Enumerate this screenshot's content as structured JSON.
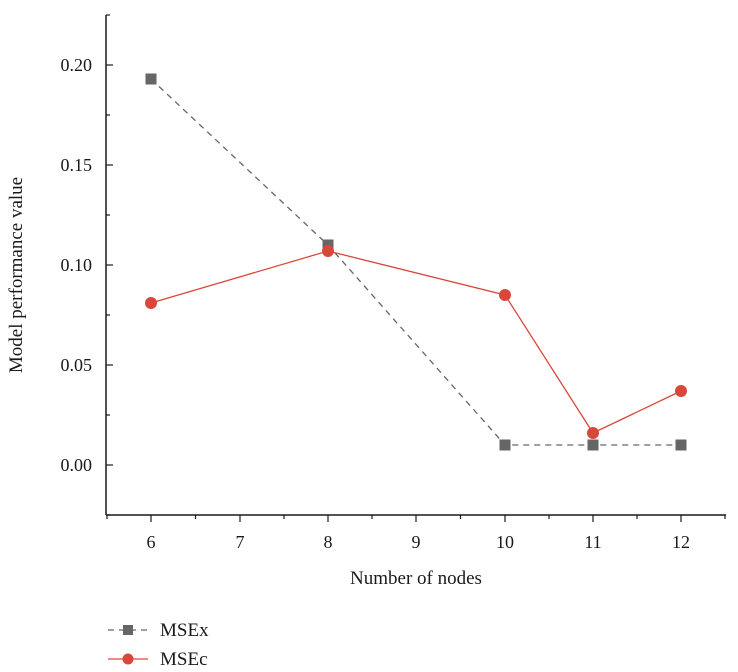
{
  "chart_data": {
    "type": "line",
    "x_categories": [
      "6",
      "7",
      "8",
      "9",
      "10",
      "11",
      "12"
    ],
    "x_ticks_major": [
      "6",
      "7",
      "8",
      "9",
      "10",
      "11",
      "12"
    ],
    "y_ticks": [
      "0.00",
      "0.05",
      "0.10",
      "0.15",
      "0.20"
    ],
    "y_tick_values": [
      0,
      0.05,
      0.1,
      0.15,
      0.2
    ],
    "ylim": [
      -0.025,
      0.225
    ],
    "xlabel": "Number of nodes",
    "ylabel": "Model performance value",
    "grid": false,
    "legend_position": "bottom-left",
    "series": [
      {
        "name": "MSEx",
        "marker": "square",
        "line_style": "dashed",
        "color": "#666666",
        "x": [
          "6",
          "8",
          "10",
          "11",
          "12"
        ],
        "values": [
          0.193,
          0.11,
          0.01,
          0.01,
          0.01
        ]
      },
      {
        "name": "MSEc",
        "marker": "circle",
        "line_style": "solid",
        "color": "#d9473b",
        "x": [
          "6",
          "8",
          "10",
          "11",
          "12"
        ],
        "values": [
          0.081,
          0.107,
          0.085,
          0.016,
          0.037
        ]
      }
    ]
  }
}
